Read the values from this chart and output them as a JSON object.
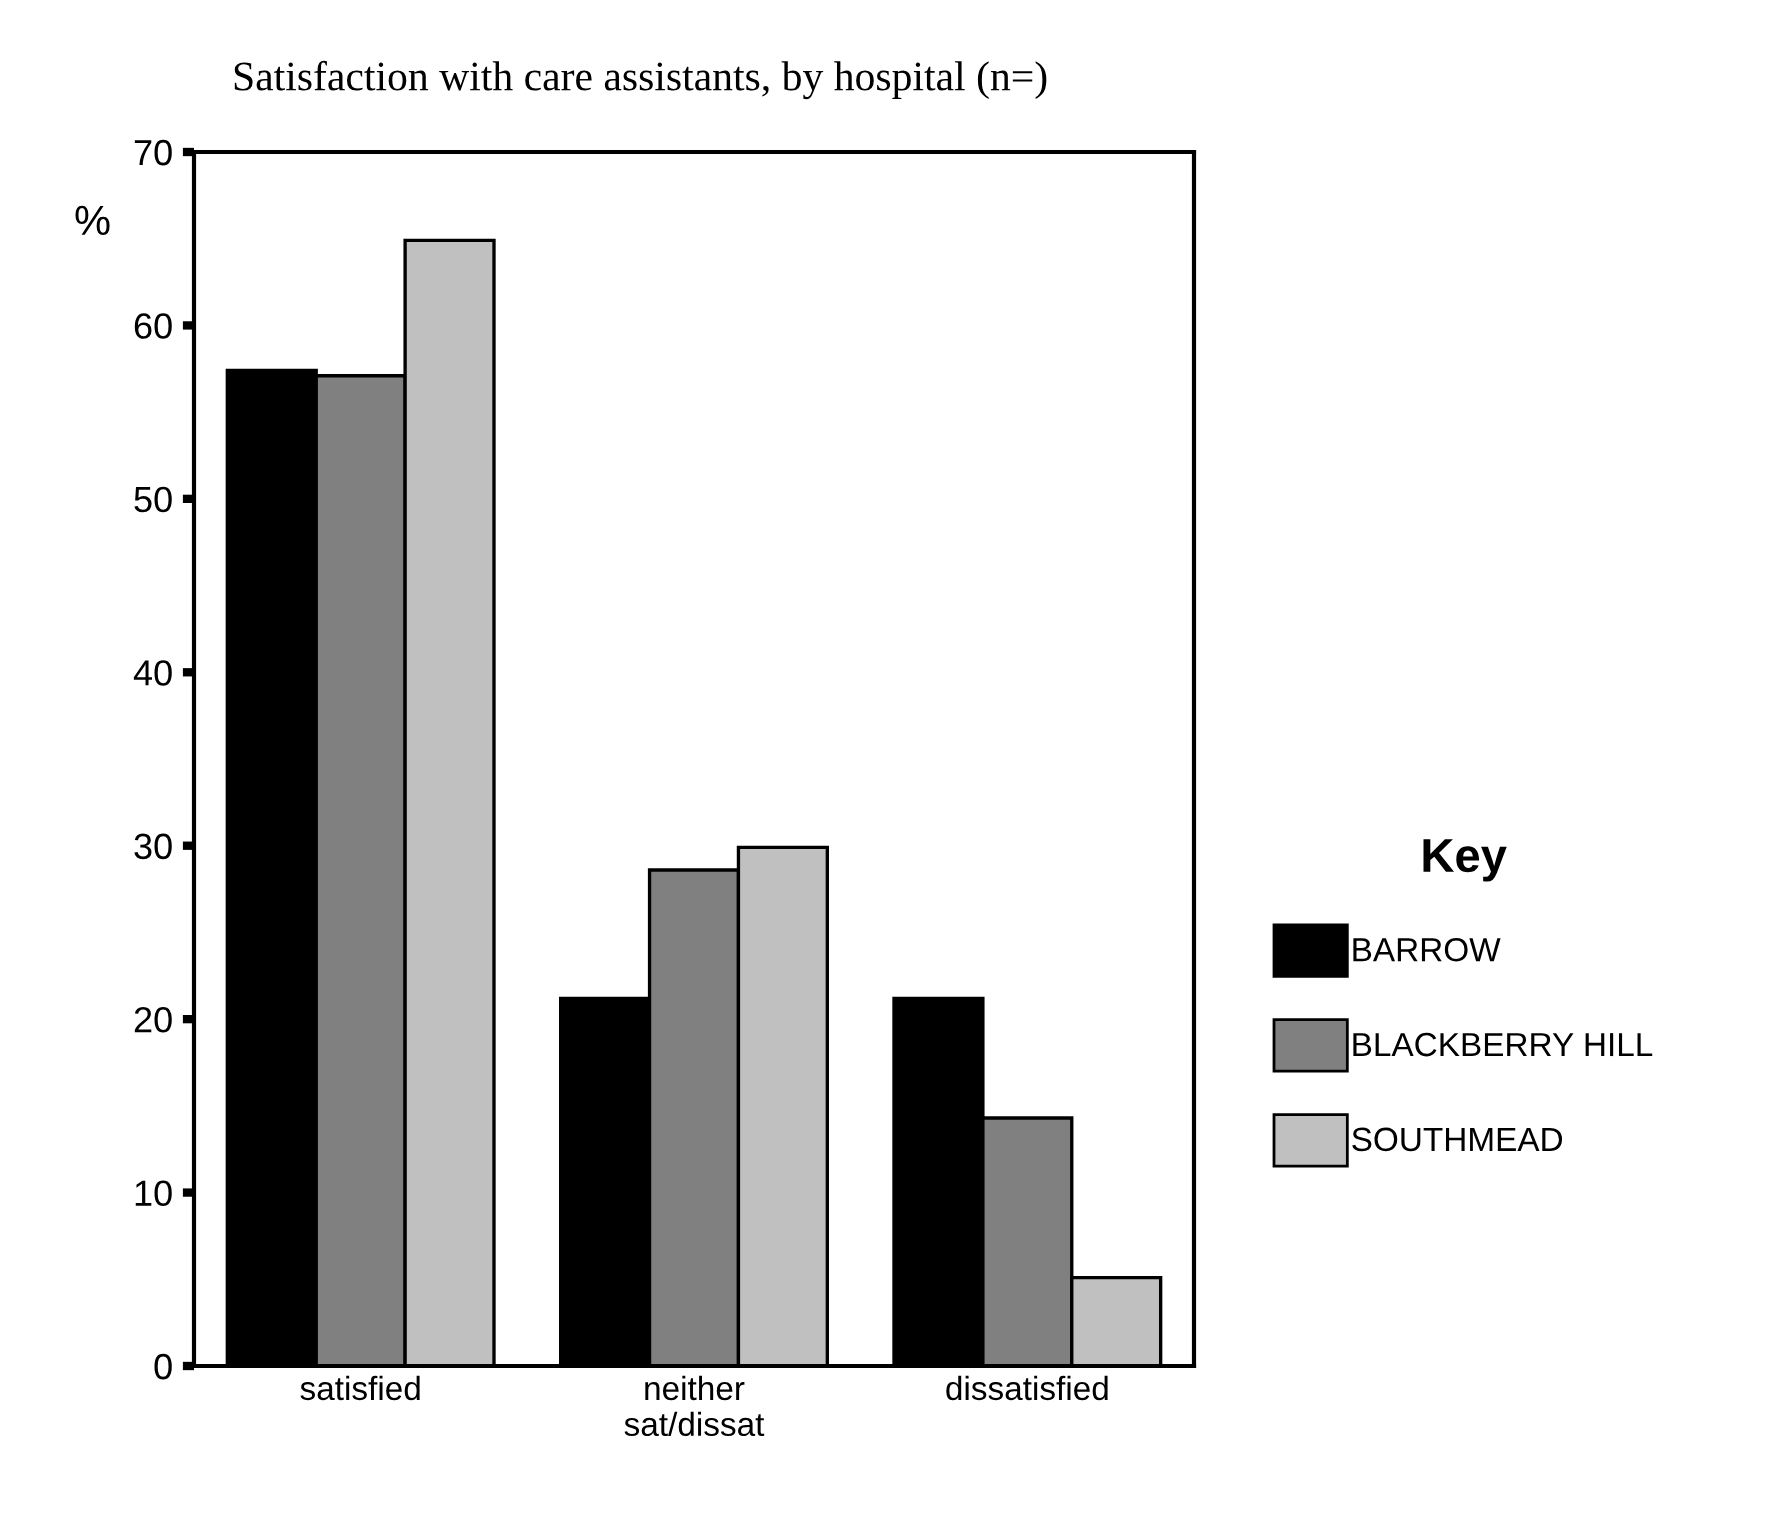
{
  "chart_data": {
    "type": "bar",
    "title": "Satisfaction with care assistants, by hospital (n=)",
    "ylabel": "%",
    "categories": [
      "satisfied",
      "neither\nsat/dissat",
      "dissatisfied"
    ],
    "series": [
      {
        "name": "BARROW",
        "color": "#000000",
        "values": [
          57.4,
          21.2,
          21.2
        ]
      },
      {
        "name": "BLACKBERRY HILL",
        "color": "#808080",
        "values": [
          57.1,
          28.6,
          14.3
        ]
      },
      {
        "name": "SOUTHMEAD",
        "color": "#c0c0c0",
        "values": [
          64.9,
          29.9,
          5.1
        ]
      }
    ],
    "legend_title": "Key",
    "legend": "right",
    "ylim": [
      0,
      70
    ],
    "yticks": [
      0,
      10,
      20,
      30,
      40,
      50,
      60,
      70
    ],
    "grid": false
  }
}
